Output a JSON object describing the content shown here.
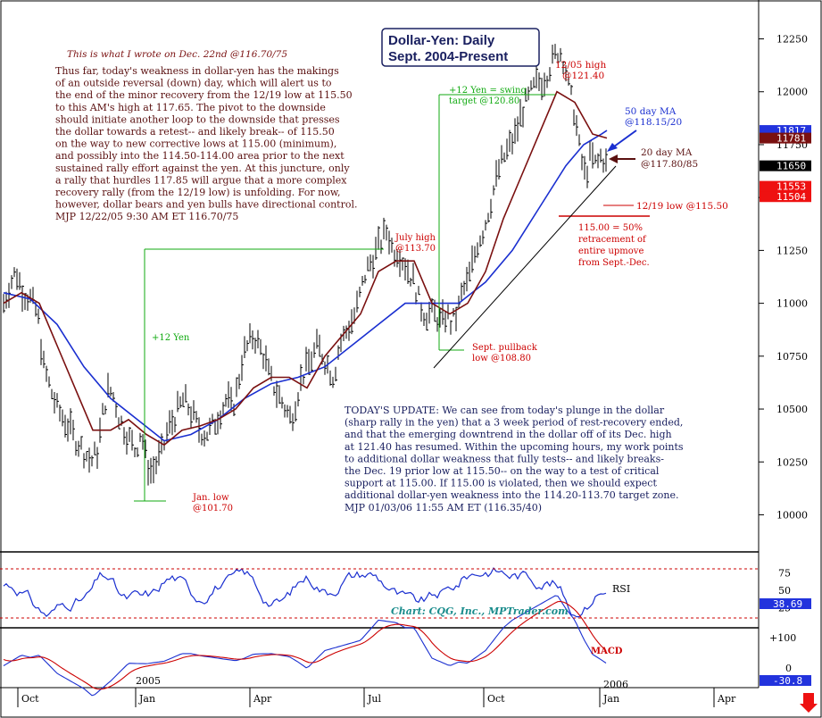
{
  "chart_data": [
    {
      "type": "line",
      "panel": "price",
      "title": "Dollar-Yen: Daily",
      "subtitle": "Sept. 2004-Present",
      "ylim": [
        9850,
        12400
      ],
      "y_ticks": [
        "12250",
        "12000",
        "11750",
        "11500",
        "11250",
        "11000",
        "10750",
        "10500",
        "10250",
        "10000"
      ],
      "price_tags": [
        {
          "label": "11817",
          "value": 11817,
          "color": "#2233dd"
        },
        {
          "label": "11781",
          "value": 11781,
          "color": "#7a1010"
        },
        {
          "label": "11650",
          "value": 11650,
          "color": "#000000"
        },
        {
          "label": "11553",
          "value": 11553,
          "color": "#ee1111"
        },
        {
          "label": "11504",
          "value": 11504,
          "color": "#ee1111"
        }
      ],
      "price_path": [
        [
          0,
          11000
        ],
        [
          8,
          11100
        ],
        [
          14,
          11150
        ],
        [
          22,
          11050
        ],
        [
          30,
          11020
        ],
        [
          38,
          10950
        ],
        [
          45,
          10700
        ],
        [
          52,
          10600
        ],
        [
          60,
          10500
        ],
        [
          68,
          10450
        ],
        [
          75,
          10400
        ],
        [
          82,
          10350
        ],
        [
          90,
          10300
        ],
        [
          98,
          10250
        ],
        [
          105,
          10300
        ],
        [
          112,
          10500
        ],
        [
          118,
          10600
        ],
        [
          124,
          10550
        ],
        [
          130,
          10450
        ],
        [
          136,
          10400
        ],
        [
          142,
          10350
        ],
        [
          148,
          10300
        ],
        [
          154,
          10400
        ],
        [
          160,
          10250
        ],
        [
          166,
          10200
        ],
        [
          172,
          10250
        ],
        [
          178,
          10300
        ],
        [
          184,
          10400
        ],
        [
          190,
          10450
        ],
        [
          196,
          10500
        ],
        [
          202,
          10550
        ],
        [
          208,
          10500
        ],
        [
          214,
          10450
        ],
        [
          220,
          10400
        ],
        [
          226,
          10380
        ],
        [
          232,
          10400
        ],
        [
          238,
          10450
        ],
        [
          244,
          10500
        ],
        [
          250,
          10550
        ],
        [
          256,
          10500
        ],
        [
          262,
          10600
        ],
        [
          268,
          10750
        ],
        [
          274,
          10800
        ],
        [
          280,
          10850
        ],
        [
          286,
          10800
        ],
        [
          292,
          10750
        ],
        [
          298,
          10650
        ],
        [
          304,
          10600
        ],
        [
          310,
          10550
        ],
        [
          316,
          10500
        ],
        [
          322,
          10450
        ],
        [
          328,
          10550
        ],
        [
          334,
          10650
        ],
        [
          340,
          10700
        ],
        [
          346,
          10750
        ],
        [
          352,
          10800
        ],
        [
          358,
          10750
        ],
        [
          364,
          10700
        ],
        [
          370,
          10650
        ],
        [
          376,
          10800
        ],
        [
          382,
          10850
        ],
        [
          388,
          10900
        ],
        [
          394,
          10950
        ],
        [
          400,
          11050
        ],
        [
          406,
          11150
        ],
        [
          412,
          11200
        ],
        [
          418,
          11250
        ],
        [
          424,
          11300
        ],
        [
          430,
          11350
        ],
        [
          436,
          11250
        ],
        [
          442,
          11250
        ],
        [
          448,
          11200
        ],
        [
          454,
          11150
        ],
        [
          460,
          11100
        ],
        [
          466,
          11000
        ],
        [
          472,
          10950
        ],
        [
          478,
          10950
        ],
        [
          484,
          10950
        ],
        [
          490,
          10900
        ],
        [
          496,
          10950
        ],
        [
          502,
          10900
        ],
        [
          508,
          10950
        ],
        [
          514,
          11050
        ],
        [
          520,
          11100
        ],
        [
          526,
          11200
        ],
        [
          532,
          11300
        ],
        [
          538,
          11350
        ],
        [
          544,
          11450
        ],
        [
          550,
          11550
        ],
        [
          556,
          11650
        ],
        [
          562,
          11700
        ],
        [
          568,
          11750
        ],
        [
          574,
          11800
        ],
        [
          580,
          11900
        ],
        [
          586,
          11950
        ],
        [
          592,
          12000
        ],
        [
          598,
          12050
        ],
        [
          604,
          12050
        ],
        [
          610,
          12100
        ],
        [
          616,
          12150
        ],
        [
          622,
          12200
        ],
        [
          628,
          12150
        ],
        [
          634,
          12000
        ],
        [
          640,
          11900
        ],
        [
          646,
          11700
        ],
        [
          652,
          11600
        ],
        [
          658,
          11700
        ],
        [
          664,
          11650
        ],
        [
          670,
          11700
        ],
        [
          676,
          11650
        ]
      ],
      "ma50_path": [
        [
          0,
          11050
        ],
        [
          30,
          11020
        ],
        [
          60,
          10900
        ],
        [
          90,
          10700
        ],
        [
          120,
          10550
        ],
        [
          150,
          10450
        ],
        [
          180,
          10350
        ],
        [
          210,
          10380
        ],
        [
          240,
          10450
        ],
        [
          270,
          10550
        ],
        [
          300,
          10620
        ],
        [
          330,
          10650
        ],
        [
          360,
          10700
        ],
        [
          390,
          10800
        ],
        [
          420,
          10900
        ],
        [
          450,
          11000
        ],
        [
          480,
          11000
        ],
        [
          510,
          11000
        ],
        [
          540,
          11100
        ],
        [
          570,
          11250
        ],
        [
          600,
          11450
        ],
        [
          630,
          11650
        ],
        [
          650,
          11750
        ],
        [
          670,
          11800
        ],
        [
          676,
          11817
        ]
      ],
      "ma20_path": [
        [
          0,
          11000
        ],
        [
          20,
          11050
        ],
        [
          40,
          11000
        ],
        [
          60,
          10800
        ],
        [
          80,
          10600
        ],
        [
          100,
          10400
        ],
        [
          120,
          10400
        ],
        [
          140,
          10450
        ],
        [
          160,
          10380
        ],
        [
          180,
          10330
        ],
        [
          200,
          10400
        ],
        [
          220,
          10420
        ],
        [
          240,
          10450
        ],
        [
          260,
          10500
        ],
        [
          280,
          10600
        ],
        [
          300,
          10650
        ],
        [
          320,
          10650
        ],
        [
          340,
          10600
        ],
        [
          360,
          10750
        ],
        [
          380,
          10850
        ],
        [
          400,
          10950
        ],
        [
          420,
          11150
        ],
        [
          440,
          11200
        ],
        [
          460,
          11200
        ],
        [
          480,
          11000
        ],
        [
          500,
          10950
        ],
        [
          520,
          11000
        ],
        [
          540,
          11150
        ],
        [
          560,
          11400
        ],
        [
          580,
          11600
        ],
        [
          600,
          11800
        ],
        [
          620,
          12000
        ],
        [
          640,
          11950
        ],
        [
          660,
          11800
        ],
        [
          676,
          11781
        ]
      ],
      "annotations": {
        "header_note": "This is what I wrote on Dec. 22nd @116.70/75",
        "commentary": [
          "Thus far, today's weakness in dollar-yen has the makings",
          "of an outside reversal (down) day, which will alert us to",
          "the end of the minor recovery from the 12/19 low at 115.50",
          "to this AM's high at 117.65. The pivot to the downside",
          "should initiate another loop to the downside that presses",
          "the dollar towards a retest-- and likely break-- of 115.50",
          "on the way to new corrective lows at 115.00 (minimum),",
          "and possibly into the 114.50-114.00 area prior to the next",
          "sustained rally effort against the yen. At this juncture, only",
          "a rally that hurdles 117.85 will argue that a more complex",
          "recovery rally (from the 12/19 low) is unfolding. For now,",
          "however, dollar bears and yen bulls have directional control.",
          "MJP  12/22/05  9:30 AM ET  116.70/75"
        ],
        "update": [
          "TODAY'S UPDATE: We can see from today's plunge in the dollar",
          "(sharp rally in the yen) that a 3 week period of rest-recovery ended,",
          "and that the emerging downtrend in the dollar off of its Dec. high",
          "at 121.40 has resumed. Within the upcoming hours, my work points",
          "to additional dollar weakness that fully tests-- and likely breaks-",
          "the Dec. 19 prior low at 115.50-- on the way to a test of critical",
          "support at 115.00. If 115.00 is violated, then we should expect",
          "additional dollar-yen weakness into the 114.20-113.70 target zone.",
          "MJP 01/03/06  11:55 AM ET  (116.35/40)"
        ],
        "high_1205": [
          "12/05 high",
          "@121.40"
        ],
        "ma50_label": [
          "50 day MA",
          "@118.15/20"
        ],
        "ma20_label": [
          "20 day MA",
          "@117.80/85"
        ],
        "low_1219": "12/19 low @115.50",
        "retracement": [
          "115.00 = 50%",
          "retracement of",
          "entire upmove",
          "from Sept.-Dec."
        ],
        "swing_target": [
          "+12 Yen = swing",
          "target @120.80"
        ],
        "july_high": [
          "July high",
          "@113.70"
        ],
        "sept_pullback": [
          "Sept. pullback",
          "low @108.80"
        ],
        "jan_low": [
          "Jan. low",
          "@101.70"
        ],
        "plus12": "+12 Yen"
      }
    },
    {
      "type": "line",
      "panel": "rsi",
      "label": "RSI",
      "y_ticks": [
        "75",
        "50",
        "25"
      ],
      "value_tag": "38.69",
      "credit": "Chart: CQG, Inc., MPTrader.com",
      "levels": [
        75,
        25
      ]
    },
    {
      "type": "line",
      "panel": "macd",
      "label": "MACD",
      "y_ticks": [
        "+100",
        "0"
      ],
      "value_tag": "-30.8"
    }
  ],
  "x_axis": {
    "ticks": [
      "Oct",
      "Jan",
      "Apr",
      "Jul",
      "Oct",
      "Jan",
      "Apr"
    ],
    "year_labels": [
      "2005",
      "2006"
    ]
  },
  "colors": {
    "ma50": "#1a2fd0",
    "ma20": "#7a1010",
    "annotation_red": "#cc0000",
    "annotation_dark": "#5a1010",
    "annotation_blue": "#1a2fd0",
    "fib_green": "#11aa11",
    "credit_teal": "#1a8c8c",
    "frame": "#000000",
    "level_red": "#cc0000"
  }
}
